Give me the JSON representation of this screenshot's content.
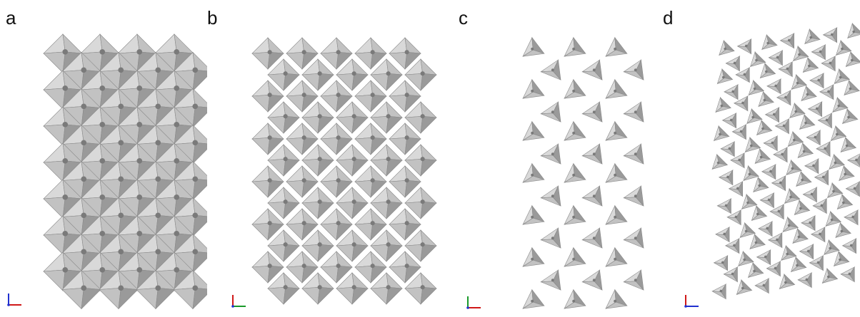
{
  "figure": {
    "panels": [
      {
        "id": "a",
        "label": "a",
        "axes": [
          "z",
          "y"
        ]
      },
      {
        "id": "b",
        "label": "b",
        "axes": [
          "z",
          "y"
        ]
      },
      {
        "id": "c",
        "label": "c",
        "axes": [
          "z",
          "y"
        ]
      },
      {
        "id": "d",
        "label": "d",
        "axes": [
          "x",
          "z"
        ]
      }
    ],
    "colors": {
      "background": "#ffffff",
      "face_light": "#d9d9d9",
      "face_mid": "#c2c2c2",
      "face_dark": "#9a9a9a",
      "edge": "#8a8a8a",
      "atom": "#7a7a7a",
      "axis_red": "#d01818",
      "axis_green": "#1a9a2a",
      "axis_blue": "#2030d0"
    }
  }
}
